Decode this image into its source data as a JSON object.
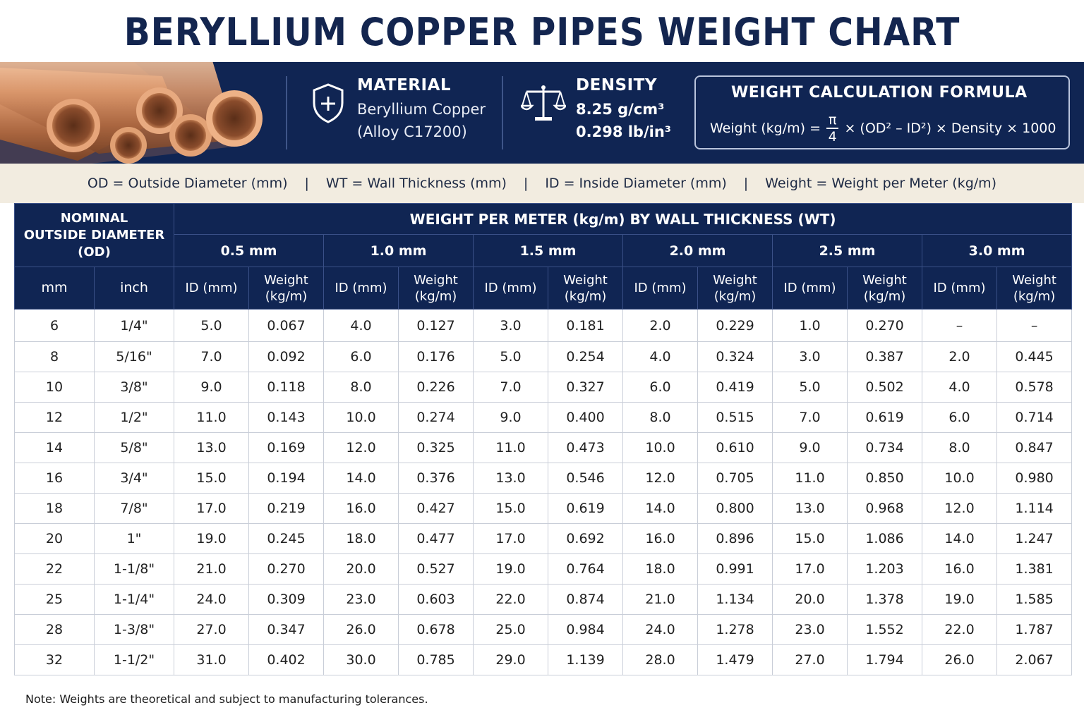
{
  "title": "BERYLLIUM COPPER PIPES WEIGHT CHART",
  "material": {
    "heading": "MATERIAL",
    "line1": "Beryllium Copper",
    "line2": "(Alloy C17200)",
    "icon": "shield-plus-icon"
  },
  "density": {
    "heading": "DENSITY",
    "line1": "8.25 g/cm³",
    "line2": "0.298 lb/in³",
    "icon": "balance-scale-icon"
  },
  "formula": {
    "heading": "WEIGHT CALCULATION FORMULA",
    "lhs": "Weight (kg/m) =",
    "numerator": "π",
    "denominator": "4",
    "rhs": "× (OD² – ID²) × Density × 1000"
  },
  "legend": {
    "od": "OD = Outside Diameter (mm)",
    "wt": "WT = Wall Thickness (mm)",
    "id": "ID = Inside Diameter (mm)",
    "weight": "Weight = Weight per Meter (kg/m)",
    "separator": "|"
  },
  "table": {
    "nominal_header": [
      "NOMINAL",
      "OUTSIDE DIAMETER",
      "(OD)"
    ],
    "group_header": "WEIGHT PER METER (kg/m) BY WALL THICKNESS (WT)",
    "wall_thicknesses": [
      "0.5 mm",
      "1.0 mm",
      "1.5 mm",
      "2.0 mm",
      "2.5 mm",
      "3.0 mm"
    ],
    "unit_headers": [
      "mm",
      "inch"
    ],
    "id_header": "ID (mm)",
    "weight_header": [
      "Weight",
      "(kg/m)"
    ],
    "rows": [
      [
        "6",
        "1/4\"",
        "5.0",
        "0.067",
        "4.0",
        "0.127",
        "3.0",
        "0.181",
        "2.0",
        "0.229",
        "1.0",
        "0.270",
        "–",
        "–"
      ],
      [
        "8",
        "5/16\"",
        "7.0",
        "0.092",
        "6.0",
        "0.176",
        "5.0",
        "0.254",
        "4.0",
        "0.324",
        "3.0",
        "0.387",
        "2.0",
        "0.445"
      ],
      [
        "10",
        "3/8\"",
        "9.0",
        "0.118",
        "8.0",
        "0.226",
        "7.0",
        "0.327",
        "6.0",
        "0.419",
        "5.0",
        "0.502",
        "4.0",
        "0.578"
      ],
      [
        "12",
        "1/2\"",
        "11.0",
        "0.143",
        "10.0",
        "0.274",
        "9.0",
        "0.400",
        "8.0",
        "0.515",
        "7.0",
        "0.619",
        "6.0",
        "0.714"
      ],
      [
        "14",
        "5/8\"",
        "13.0",
        "0.169",
        "12.0",
        "0.325",
        "11.0",
        "0.473",
        "10.0",
        "0.610",
        "9.0",
        "0.734",
        "8.0",
        "0.847"
      ],
      [
        "16",
        "3/4\"",
        "15.0",
        "0.194",
        "14.0",
        "0.376",
        "13.0",
        "0.546",
        "12.0",
        "0.705",
        "11.0",
        "0.850",
        "10.0",
        "0.980"
      ],
      [
        "18",
        "7/8\"",
        "17.0",
        "0.219",
        "16.0",
        "0.427",
        "15.0",
        "0.619",
        "14.0",
        "0.800",
        "13.0",
        "0.968",
        "12.0",
        "1.114"
      ],
      [
        "20",
        "1\"",
        "19.0",
        "0.245",
        "18.0",
        "0.477",
        "17.0",
        "0.692",
        "16.0",
        "0.896",
        "15.0",
        "1.086",
        "14.0",
        "1.247"
      ],
      [
        "22",
        "1-1/8\"",
        "21.0",
        "0.270",
        "20.0",
        "0.527",
        "19.0",
        "0.764",
        "18.0",
        "0.991",
        "17.0",
        "1.203",
        "16.0",
        "1.381"
      ],
      [
        "25",
        "1-1/4\"",
        "24.0",
        "0.309",
        "23.0",
        "0.603",
        "22.0",
        "0.874",
        "21.0",
        "1.134",
        "20.0",
        "1.378",
        "19.0",
        "1.585"
      ],
      [
        "28",
        "1-3/8\"",
        "27.0",
        "0.347",
        "26.0",
        "0.678",
        "25.0",
        "0.984",
        "24.0",
        "1.278",
        "23.0",
        "1.552",
        "22.0",
        "1.787"
      ],
      [
        "32",
        "1-1/2\"",
        "31.0",
        "0.402",
        "30.0",
        "0.785",
        "29.0",
        "1.139",
        "28.0",
        "1.479",
        "27.0",
        "1.794",
        "26.0",
        "2.067"
      ]
    ]
  },
  "note": "Note: Weights are theoretical and subject to manufacturing tolerances.",
  "colors": {
    "navy": "#102553",
    "title": "#13254f",
    "legend_bg": "#f2ece0",
    "copper": "#c98a5e"
  }
}
